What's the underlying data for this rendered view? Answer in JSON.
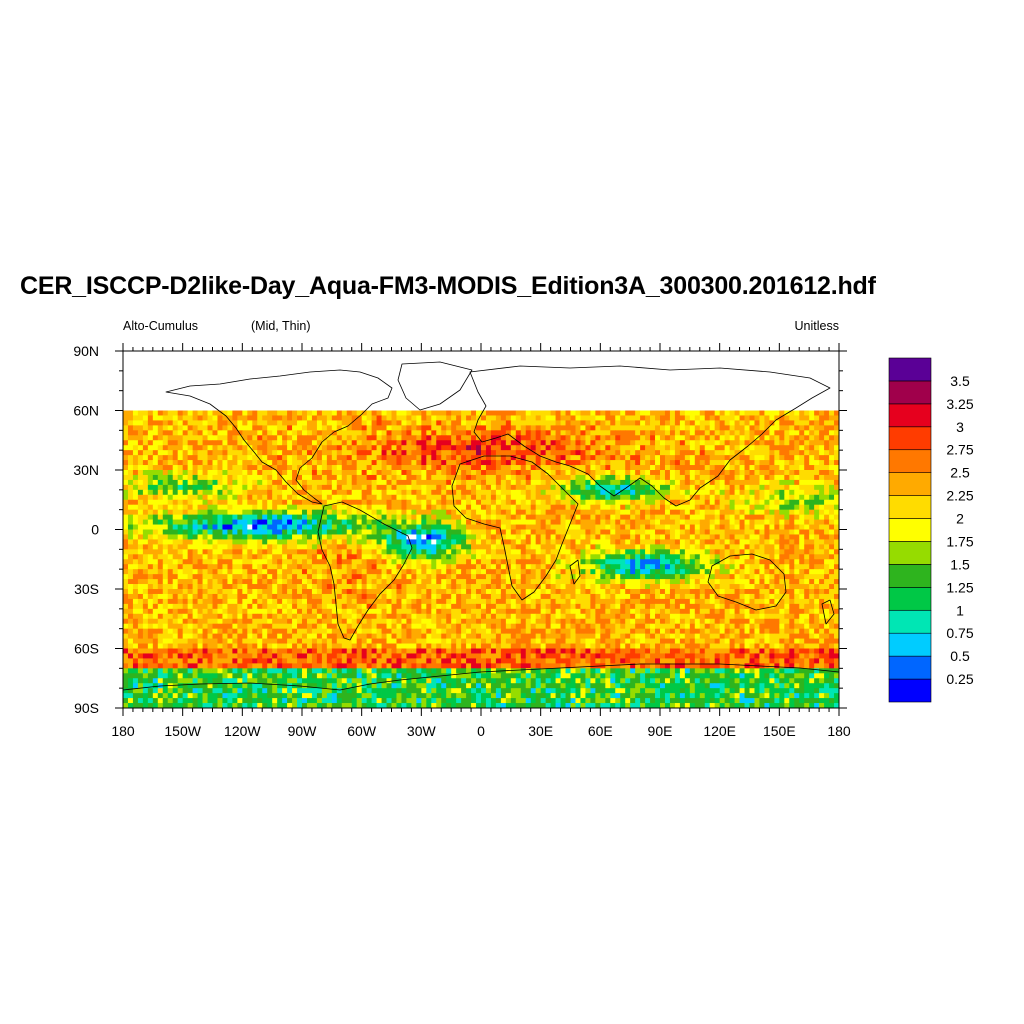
{
  "title": "CER_ISCCP-D2like-Day_Aqua-FM3-MODIS_Edition3A_300300.201612.hdf",
  "subtitle_left": "Alto-Cumulus",
  "subtitle_center": "(Mid, Thin)",
  "subtitle_right": "Unitless",
  "map": {
    "projection": "cylindrical-equidistant",
    "lon_range": [
      -180,
      180
    ],
    "lat_range": [
      -90,
      90
    ],
    "data_lat_extent": [
      -90,
      60
    ],
    "missing_color": "#ffffff",
    "x_tick_labels": [
      "180",
      "150W",
      "120W",
      "90W",
      "60W",
      "30W",
      "0",
      "30E",
      "60E",
      "90E",
      "120E",
      "150E",
      "180"
    ],
    "y_tick_labels": [
      "90N",
      "60N",
      "30N",
      "0",
      "30S",
      "60S",
      "90S"
    ]
  },
  "colorbar": {
    "labels": [
      "0.25",
      "0.5",
      "0.75",
      "1",
      "1.25",
      "1.5",
      "1.75",
      "2",
      "2.25",
      "2.5",
      "2.75",
      "3",
      "3.25",
      "3.5"
    ],
    "colors": [
      "#0000ff",
      "#0066ff",
      "#00ccff",
      "#00e6b4",
      "#00c846",
      "#2eb41e",
      "#96dc00",
      "#ffff00",
      "#ffdc00",
      "#ffaa00",
      "#ff7800",
      "#ff3c00",
      "#e6001e",
      "#a0004b",
      "#5a0096"
    ]
  }
}
